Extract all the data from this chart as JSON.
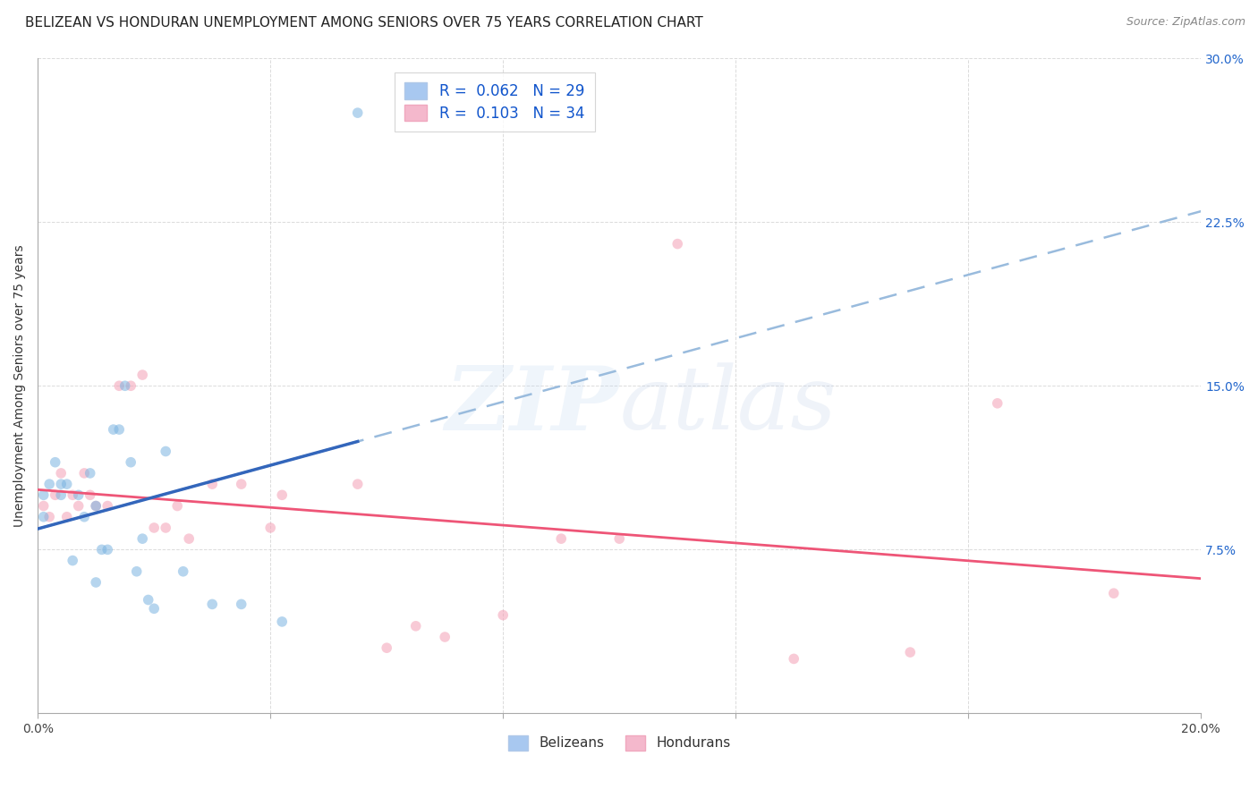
{
  "title": "BELIZEAN VS HONDURAN UNEMPLOYMENT AMONG SENIORS OVER 75 YEARS CORRELATION CHART",
  "source": "Source: ZipAtlas.com",
  "ylabel": "Unemployment Among Seniors over 75 years",
  "xlim": [
    0.0,
    0.2
  ],
  "ylim": [
    0.0,
    0.3
  ],
  "xticks": [
    0.0,
    0.04,
    0.08,
    0.12,
    0.16,
    0.2
  ],
  "yticks": [
    0.0,
    0.075,
    0.15,
    0.225,
    0.3
  ],
  "xtick_labels_show": [
    "0.0%",
    "20.0%"
  ],
  "ytick_labels": [
    "",
    "7.5%",
    "15.0%",
    "22.5%",
    "30.0%"
  ],
  "watermark": "ZIPatlas",
  "belizean_color": "#7ab3e0",
  "honduran_color": "#f4a0b5",
  "belizean_line_color": "#3366bb",
  "honduran_line_color": "#ee5577",
  "dashed_line_color": "#99bbdd",
  "bg_color": "#ffffff",
  "grid_color": "#cccccc",
  "title_fontsize": 11,
  "axis_label_fontsize": 10,
  "tick_fontsize": 10,
  "legend_fontsize": 12,
  "marker_size": 70,
  "marker_alpha": 0.55,
  "belizean_r": 0.062,
  "belizean_n": 29,
  "honduran_r": 0.103,
  "honduran_n": 34,
  "belizean_x": [
    0.001,
    0.001,
    0.002,
    0.003,
    0.004,
    0.004,
    0.005,
    0.006,
    0.007,
    0.008,
    0.009,
    0.01,
    0.01,
    0.011,
    0.012,
    0.013,
    0.014,
    0.015,
    0.016,
    0.017,
    0.018,
    0.019,
    0.02,
    0.022,
    0.025,
    0.03,
    0.035,
    0.042,
    0.055
  ],
  "belizean_y": [
    0.1,
    0.09,
    0.105,
    0.115,
    0.1,
    0.105,
    0.105,
    0.07,
    0.1,
    0.09,
    0.11,
    0.095,
    0.06,
    0.075,
    0.075,
    0.13,
    0.13,
    0.15,
    0.115,
    0.065,
    0.08,
    0.052,
    0.048,
    0.12,
    0.065,
    0.05,
    0.05,
    0.042,
    0.275
  ],
  "honduran_x": [
    0.001,
    0.002,
    0.003,
    0.004,
    0.005,
    0.006,
    0.007,
    0.008,
    0.009,
    0.01,
    0.012,
    0.014,
    0.016,
    0.018,
    0.02,
    0.022,
    0.024,
    0.026,
    0.03,
    0.035,
    0.04,
    0.042,
    0.055,
    0.06,
    0.065,
    0.07,
    0.08,
    0.09,
    0.1,
    0.11,
    0.13,
    0.15,
    0.165,
    0.185
  ],
  "honduran_y": [
    0.095,
    0.09,
    0.1,
    0.11,
    0.09,
    0.1,
    0.095,
    0.11,
    0.1,
    0.095,
    0.095,
    0.15,
    0.15,
    0.155,
    0.085,
    0.085,
    0.095,
    0.08,
    0.105,
    0.105,
    0.085,
    0.1,
    0.105,
    0.03,
    0.04,
    0.035,
    0.045,
    0.08,
    0.08,
    0.215,
    0.025,
    0.028,
    0.142,
    0.055
  ]
}
